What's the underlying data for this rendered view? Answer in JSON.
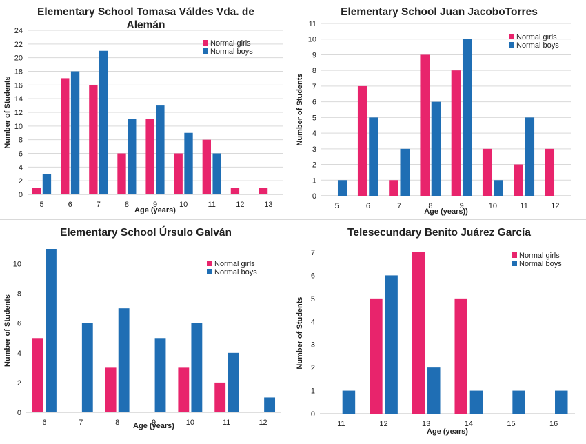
{
  "colors": {
    "girls": "#e8246c",
    "boys": "#1f6eb4",
    "grid": "#d9d9d9",
    "text": "#222222"
  },
  "chart_data": [
    {
      "type": "bar",
      "title_lines": [
        "Elementary School Tomasa Váldes Vda. de",
        "Alemán"
      ],
      "xlabel": "Age (years)",
      "ylabel": "Number of Students",
      "categories": [
        "5",
        "6",
        "7",
        "8",
        "9",
        "10",
        "11",
        "12",
        "13"
      ],
      "ylim": [
        0,
        24
      ],
      "yticks": [
        0,
        2,
        4,
        6,
        8,
        10,
        12,
        14,
        16,
        18,
        20,
        22,
        24
      ],
      "grid": true,
      "legend": "top-right",
      "series": [
        {
          "name": "Normal girls",
          "values": [
            1,
            17,
            16,
            6,
            11,
            6,
            8,
            1,
            1
          ]
        },
        {
          "name": "Normal boys",
          "values": [
            3,
            18,
            21,
            11,
            13,
            9,
            6,
            0,
            0
          ]
        }
      ]
    },
    {
      "type": "bar",
      "title_lines": [
        "Elementary School Juan JacoboTorres"
      ],
      "xlabel": "Age (years))",
      "ylabel": "Number of Students",
      "categories": [
        "5",
        "6",
        "7",
        "8",
        "9",
        "10",
        "11",
        "12"
      ],
      "ylim": [
        0,
        11
      ],
      "yticks": [
        0,
        1,
        2,
        3,
        4,
        5,
        6,
        7,
        8,
        9,
        10,
        11
      ],
      "grid": true,
      "legend": "top-right",
      "series": [
        {
          "name": "Normal girls",
          "values": [
            0,
            7,
            1,
            9,
            8,
            3,
            2,
            3
          ]
        },
        {
          "name": "Normal boys",
          "values": [
            1,
            5,
            3,
            6,
            10,
            1,
            5,
            0
          ]
        }
      ]
    },
    {
      "type": "bar",
      "title_lines": [
        "Elementary School Úrsulo Galván"
      ],
      "xlabel": "Age (years)",
      "ylabel": "Number of Students",
      "categories": [
        "6",
        "7",
        "8",
        "9",
        "10",
        "11",
        "12"
      ],
      "ylim": [
        0,
        11
      ],
      "yticks": [
        0,
        2,
        4,
        6,
        8,
        10
      ],
      "grid": false,
      "legend": "right",
      "series": [
        {
          "name": "Normal girls",
          "values": [
            5,
            0,
            3,
            0,
            3,
            2,
            0
          ]
        },
        {
          "name": "Normal boys",
          "values": [
            11,
            6,
            7,
            5,
            6,
            4,
            1
          ]
        }
      ]
    },
    {
      "type": "bar",
      "title_lines": [
        "Telesecundary Benito Juárez García"
      ],
      "xlabel": "Age (years)",
      "ylabel": "Number of Students",
      "categories": [
        "11",
        "12",
        "13",
        "14",
        "15",
        "16"
      ],
      "ylim": [
        0,
        7
      ],
      "yticks": [
        0,
        1,
        2,
        3,
        4,
        5,
        6,
        7
      ],
      "grid": false,
      "legend": "top-right",
      "series": [
        {
          "name": "Normal girls",
          "values": [
            0,
            5,
            7,
            5,
            0,
            0
          ]
        },
        {
          "name": "Normal boys",
          "values": [
            1,
            6,
            2,
            1,
            1,
            1
          ]
        }
      ]
    }
  ]
}
